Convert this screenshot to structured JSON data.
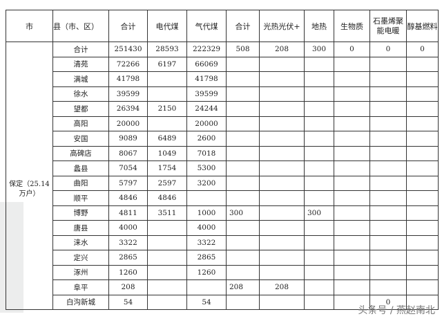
{
  "headers": [
    "市",
    "县（市、区）",
    "合计",
    "电代煤",
    "气代煤",
    "合计",
    "光热光伏+",
    "地热",
    "生物质",
    "石墨烯聚能电暖",
    "醇基燃料"
  ],
  "city": "保定（25.14万户）",
  "rows": [
    [
      "合计",
      "251430",
      "28593",
      "222329",
      "508",
      "208",
      "300",
      "0",
      "0",
      "0"
    ],
    [
      "清苑",
      "72266",
      "6197",
      "66069",
      "",
      "",
      "",
      "",
      "",
      ""
    ],
    [
      "满城",
      "41798",
      "",
      "41798",
      "",
      "",
      "",
      "",
      "",
      ""
    ],
    [
      "徐水",
      "39599",
      "",
      "39599",
      "",
      "",
      "",
      "",
      "",
      ""
    ],
    [
      "望都",
      "26394",
      "2150",
      "24244",
      "",
      "",
      "",
      "",
      "",
      ""
    ],
    [
      "高阳",
      "20000",
      "",
      "20000",
      "",
      "",
      "",
      "",
      "",
      ""
    ],
    [
      "安国",
      "9089",
      "6489",
      "2600",
      "",
      "",
      "",
      "",
      "",
      ""
    ],
    [
      "高碑店",
      "8067",
      "1049",
      "7018",
      "",
      "",
      "",
      "",
      "",
      ""
    ],
    [
      "蠡县",
      "7054",
      "1754",
      "5300",
      "",
      "",
      "",
      "",
      "",
      ""
    ],
    [
      "曲阳",
      "5797",
      "2597",
      "3200",
      "",
      "",
      "",
      "",
      "",
      ""
    ],
    [
      "顺平",
      "4846",
      "4846",
      "",
      "",
      "",
      "",
      "",
      "",
      ""
    ],
    [
      "博野",
      "4811",
      "3511",
      "1000",
      "300",
      "",
      "300",
      "",
      "",
      ""
    ],
    [
      "唐县",
      "4000",
      "",
      "4000",
      "",
      "",
      "",
      "",
      "",
      ""
    ],
    [
      "涞水",
      "3322",
      "",
      "3322",
      "",
      "",
      "",
      "",
      "",
      ""
    ],
    [
      "定兴",
      "2865",
      "",
      "2865",
      "",
      "",
      "",
      "",
      "",
      ""
    ],
    [
      "涿州",
      "1260",
      "",
      "1260",
      "",
      "",
      "",
      "",
      "",
      ""
    ],
    [
      "阜平",
      "208",
      "",
      "",
      "208",
      "208",
      "",
      "",
      "",
      ""
    ],
    [
      "白沟新城",
      "54",
      "",
      "54",
      "",
      "",
      "",
      "",
      "0",
      ""
    ]
  ],
  "watermark": "头条号 / 燕赵南北"
}
